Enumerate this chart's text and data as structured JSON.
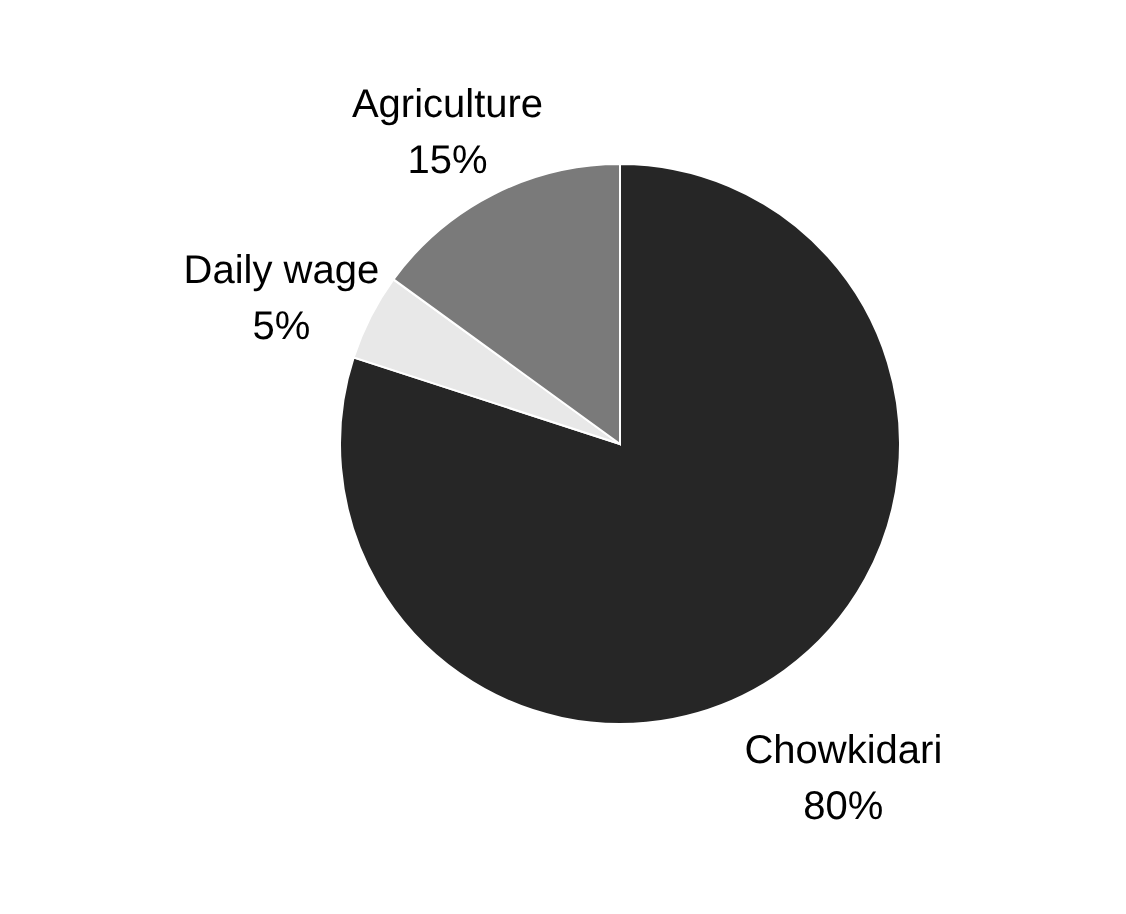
{
  "chart_data": {
    "type": "pie",
    "categories": [
      "Chowkidari",
      "Daily wage",
      "Agriculture"
    ],
    "values": [
      80,
      5,
      15
    ],
    "colors": [
      "#262626",
      "#e8e8e8",
      "#7a7a7a"
    ],
    "value_labels": [
      "80%",
      "5%",
      "15%"
    ],
    "data_labels": true
  }
}
